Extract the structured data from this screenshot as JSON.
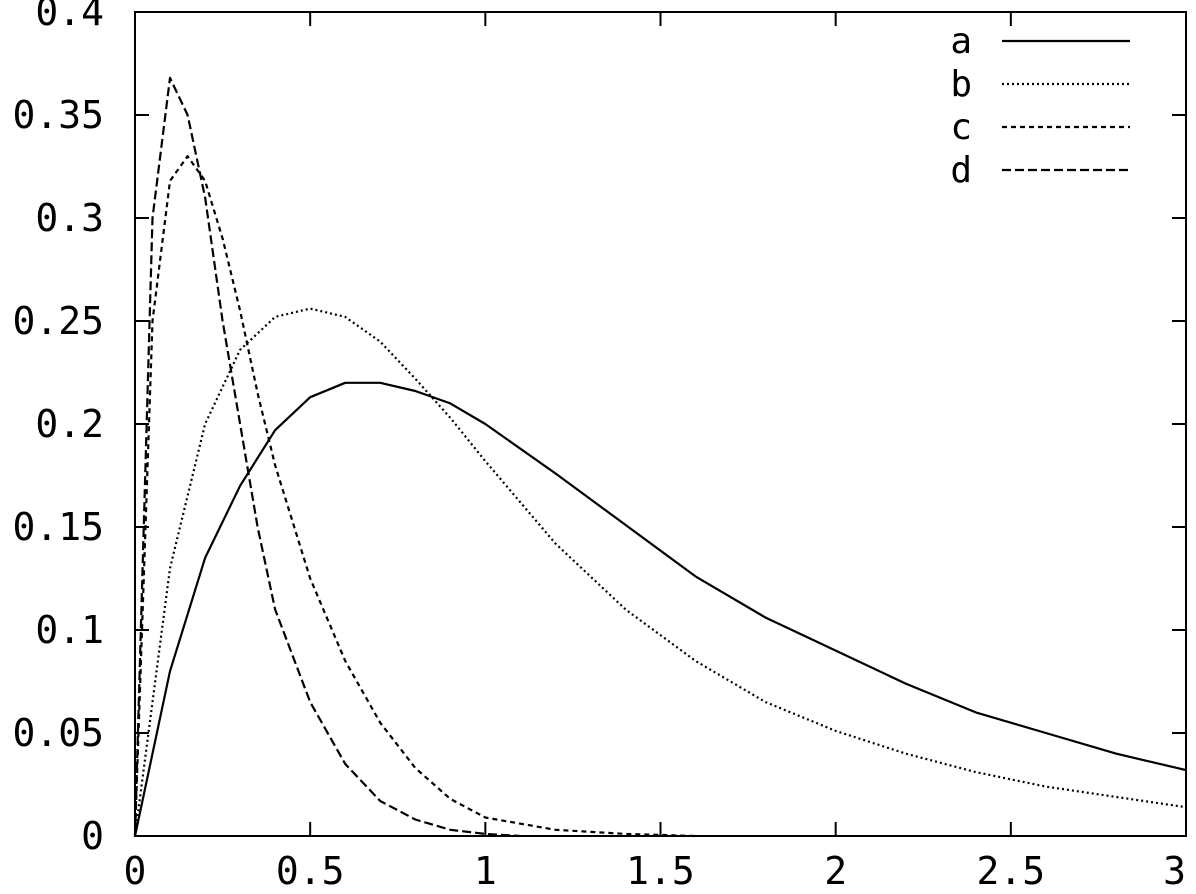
{
  "chart_data": {
    "type": "line",
    "title": "",
    "xlabel": "",
    "ylabel": "",
    "xlim": [
      0,
      3
    ],
    "ylim": [
      0,
      0.4
    ],
    "xticks": [
      0,
      0.5,
      1,
      1.5,
      2,
      2.5,
      3
    ],
    "xtick_labels": [
      "0",
      "0.5",
      "1",
      "1.5",
      "2",
      "2.5",
      "3"
    ],
    "yticks": [
      0,
      0.05,
      0.1,
      0.15,
      0.2,
      0.25,
      0.3,
      0.35,
      0.4
    ],
    "ytick_labels": [
      "0",
      "0.05",
      "0.1",
      "0.15",
      "0.2",
      "0.25",
      "0.3",
      "0.35",
      "0.4"
    ],
    "grid": false,
    "legend_position": "top-right",
    "series": [
      {
        "name": "a",
        "line_style": "solid",
        "x": [
          0,
          0.1,
          0.2,
          0.3,
          0.4,
          0.5,
          0.6,
          0.7,
          0.8,
          0.9,
          1.0,
          1.2,
          1.4,
          1.6,
          1.8,
          2.0,
          2.2,
          2.4,
          2.6,
          2.8,
          3.0
        ],
        "y": [
          0,
          0.08,
          0.135,
          0.17,
          0.197,
          0.213,
          0.22,
          0.22,
          0.216,
          0.21,
          0.2,
          0.176,
          0.151,
          0.126,
          0.106,
          0.09,
          0.074,
          0.06,
          0.05,
          0.04,
          0.032
        ]
      },
      {
        "name": "b",
        "line_style": "dotted",
        "x": [
          0,
          0.1,
          0.2,
          0.3,
          0.4,
          0.5,
          0.6,
          0.7,
          0.8,
          0.9,
          1.0,
          1.2,
          1.4,
          1.6,
          1.8,
          2.0,
          2.2,
          2.4,
          2.6,
          2.8,
          3.0
        ],
        "y": [
          0,
          0.13,
          0.2,
          0.236,
          0.252,
          0.256,
          0.252,
          0.24,
          0.222,
          0.203,
          0.182,
          0.142,
          0.11,
          0.085,
          0.065,
          0.051,
          0.04,
          0.031,
          0.024,
          0.019,
          0.014
        ]
      },
      {
        "name": "c",
        "line_style": "short-dashed",
        "x": [
          0,
          0.05,
          0.1,
          0.15,
          0.2,
          0.25,
          0.3,
          0.35,
          0.4,
          0.5,
          0.6,
          0.7,
          0.8,
          0.9,
          1.0,
          1.2,
          1.4,
          1.6
        ],
        "y": [
          0,
          0.25,
          0.318,
          0.33,
          0.318,
          0.29,
          0.255,
          0.215,
          0.18,
          0.125,
          0.085,
          0.055,
          0.033,
          0.018,
          0.009,
          0.003,
          0.001,
          0.0
        ]
      },
      {
        "name": "d",
        "line_style": "long-dashed",
        "x": [
          0,
          0.05,
          0.1,
          0.15,
          0.2,
          0.25,
          0.3,
          0.35,
          0.4,
          0.5,
          0.6,
          0.7,
          0.8,
          0.9,
          1.0,
          1.1
        ],
        "y": [
          0,
          0.3,
          0.368,
          0.35,
          0.31,
          0.25,
          0.2,
          0.15,
          0.11,
          0.065,
          0.035,
          0.017,
          0.008,
          0.003,
          0.001,
          0.0
        ]
      }
    ]
  }
}
